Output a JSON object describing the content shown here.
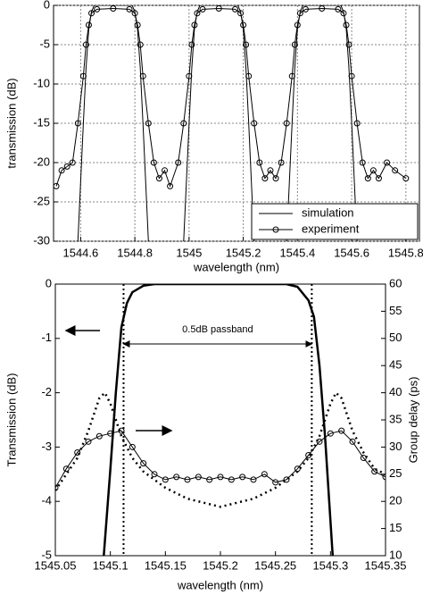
{
  "chart_data": [
    {
      "type": "line",
      "xlabel": "wavelength (nm)",
      "ylabel": "transmission (dB)",
      "xlim": [
        1544.5,
        1545.85
      ],
      "xticks": [
        1544.6,
        1544.8,
        1545,
        1545.2,
        1545.4,
        1545.6,
        1545.8
      ],
      "ylim": [
        -30,
        0
      ],
      "yticks": [
        0,
        -5,
        -10,
        -15,
        -20,
        -25,
        -30
      ],
      "grid": true,
      "legend": "lower right",
      "series": [
        {
          "name": "simulation",
          "color": "#000000",
          "style": "line",
          "x": [
            1544.59,
            1544.61,
            1544.62,
            1544.63,
            1544.64,
            1544.65,
            1544.79,
            1544.8,
            1544.81,
            1544.82,
            1544.83,
            1544.85,
            null,
            1544.98,
            1545.0,
            1545.01,
            1545.02,
            1545.03,
            1545.04,
            1545.18,
            1545.19,
            1545.2,
            1545.21,
            1545.22,
            1545.24,
            null,
            1545.36,
            1545.38,
            1545.39,
            1545.4,
            1545.41,
            1545.42,
            1545.56,
            1545.57,
            1545.58,
            1545.59,
            1545.6,
            1545.62
          ],
          "values": [
            -30,
            -15,
            -8,
            -3,
            -0.8,
            0,
            0,
            -0.8,
            -3,
            -8,
            -15,
            -30,
            null,
            -30,
            -15,
            -8,
            -3,
            -0.8,
            0,
            0,
            -0.8,
            -3,
            -8,
            -15,
            -30,
            null,
            -30,
            -15,
            -8,
            -3,
            -0.8,
            0,
            0,
            -0.8,
            -3,
            -8,
            -15,
            -30
          ]
        },
        {
          "name": "experiment",
          "color": "#000000",
          "style": "line+markers",
          "x": [
            1544.51,
            1544.53,
            1544.55,
            1544.57,
            1544.59,
            1544.61,
            1544.62,
            1544.63,
            1544.64,
            1544.66,
            1544.72,
            1544.78,
            1544.8,
            1544.81,
            1544.82,
            1544.83,
            1544.85,
            1544.87,
            1544.89,
            1544.91,
            1544.93,
            1544.96,
            1544.98,
            1545.0,
            1545.01,
            1545.02,
            1545.03,
            1545.05,
            1545.11,
            1545.17,
            1545.19,
            1545.2,
            1545.21,
            1545.22,
            1545.24,
            1545.26,
            1545.28,
            1545.3,
            1545.32,
            1545.34,
            1545.36,
            1545.38,
            1545.39,
            1545.4,
            1545.41,
            1545.43,
            1545.49,
            1545.55,
            1545.57,
            1545.58,
            1545.59,
            1545.6,
            1545.62,
            1545.64,
            1545.66,
            1545.68,
            1545.7,
            1545.73,
            1545.76,
            1545.8
          ],
          "values": [
            -23,
            -21,
            -20.5,
            -20,
            -15,
            -9,
            -5,
            -2.5,
            -1,
            -0.5,
            -0.4,
            -0.5,
            -1,
            -2.5,
            -5,
            -9,
            -15,
            -20,
            -22,
            -21,
            -23,
            -20,
            -15,
            -9,
            -5,
            -2.5,
            -1,
            -0.5,
            -0.4,
            -0.5,
            -1,
            -2.5,
            -5,
            -9,
            -15,
            -20,
            -22,
            -21,
            -22,
            -20,
            -15,
            -9,
            -5,
            -2.5,
            -1,
            -0.5,
            -0.4,
            -0.5,
            -1,
            -2.5,
            -5,
            -9,
            -15,
            -20,
            -22,
            -21,
            -22,
            -20,
            -21,
            -22
          ]
        }
      ]
    },
    {
      "type": "line",
      "xlabel": "wavelength (nm)",
      "ylabel": "Transmission (dB)",
      "y2label": "Group delay (ps)",
      "xlim": [
        1545.05,
        1545.35
      ],
      "xticks": [
        1545.05,
        1545.1,
        1545.15,
        1545.2,
        1545.25,
        1545.3,
        1545.35
      ],
      "ylim": [
        -5,
        0
      ],
      "yticks": [
        0,
        -1,
        -2,
        -3,
        -4,
        -5
      ],
      "y2lim": [
        10,
        60
      ],
      "y2ticks": [
        60,
        55,
        50,
        45,
        40,
        35,
        30,
        25,
        20,
        15,
        10
      ],
      "grid": false,
      "vlines": [
        1545.112,
        1545.283
      ],
      "annotation": "0.5dB passband",
      "series": [
        {
          "color": "#000000",
          "style": "line",
          "x": [
            1545.094,
            1545.1,
            1545.105,
            1545.11,
            1545.115,
            1545.12,
            1545.13,
            1545.14,
            1545.26,
            1545.27,
            1545.28,
            1545.285,
            1545.29,
            1545.295,
            1545.302
          ],
          "values": [
            -5,
            -3.4,
            -2,
            -0.8,
            -0.35,
            -0.15,
            -0.03,
            0,
            0,
            -0.05,
            -0.3,
            -0.6,
            -1.5,
            -2.8,
            -5
          ]
        },
        {
          "color": "#000000",
          "style": "dotted",
          "axis": "y2",
          "x": [
            1545.05,
            1545.06,
            1545.07,
            1545.08,
            1545.09,
            1545.095,
            1545.1,
            1545.11,
            1545.12,
            1545.13,
            1545.15,
            1545.17,
            1545.2,
            1545.23,
            1545.25,
            1545.27,
            1545.28,
            1545.29,
            1545.3,
            1545.305,
            1545.31,
            1545.32,
            1545.33,
            1545.34,
            1545.35
          ],
          "values": [
            22,
            25,
            28,
            33,
            39,
            40,
            38,
            32,
            28,
            25.5,
            22.5,
            20.5,
            19,
            20.5,
            22.5,
            25.5,
            28,
            32,
            38,
            40,
            39,
            33,
            29,
            26,
            25
          ]
        },
        {
          "color": "#000000",
          "style": "line+markers",
          "axis": "y2",
          "x": [
            1545.05,
            1545.06,
            1545.07,
            1545.08,
            1545.09,
            1545.1,
            1545.11,
            1545.12,
            1545.13,
            1545.14,
            1545.15,
            1545.16,
            1545.17,
            1545.18,
            1545.19,
            1545.2,
            1545.21,
            1545.22,
            1545.23,
            1545.24,
            1545.25,
            1545.26,
            1545.27,
            1545.28,
            1545.29,
            1545.3,
            1545.31,
            1545.32,
            1545.33,
            1545.34,
            1545.35
          ],
          "values": [
            22.5,
            26,
            29,
            31,
            32,
            32.5,
            33,
            30,
            27,
            25,
            24,
            24.5,
            24,
            24.5,
            24,
            24.5,
            24,
            24.5,
            24,
            25,
            23.5,
            24,
            26,
            28.5,
            31,
            32.5,
            33,
            31,
            28,
            25.5,
            24.5
          ]
        }
      ]
    }
  ]
}
